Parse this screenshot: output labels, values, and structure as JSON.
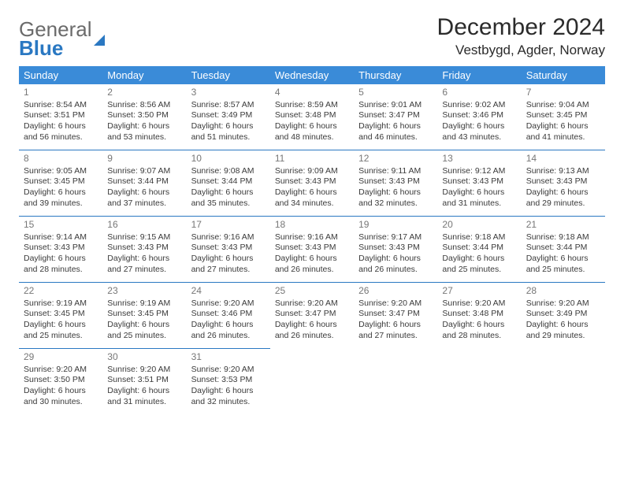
{
  "logo": {
    "line1": "General",
    "line2": "Blue"
  },
  "title": "December 2024",
  "subtitle": "Vestbygd, Agder, Norway",
  "header_bg": "#3a8bd8",
  "border_color": "#2a78c2",
  "weekdays": [
    "Sunday",
    "Monday",
    "Tuesday",
    "Wednesday",
    "Thursday",
    "Friday",
    "Saturday"
  ],
  "weeks": [
    [
      {
        "d": "1",
        "sr": "Sunrise: 8:54 AM",
        "ss": "Sunset: 3:51 PM",
        "dl1": "Daylight: 6 hours",
        "dl2": "and 56 minutes."
      },
      {
        "d": "2",
        "sr": "Sunrise: 8:56 AM",
        "ss": "Sunset: 3:50 PM",
        "dl1": "Daylight: 6 hours",
        "dl2": "and 53 minutes."
      },
      {
        "d": "3",
        "sr": "Sunrise: 8:57 AM",
        "ss": "Sunset: 3:49 PM",
        "dl1": "Daylight: 6 hours",
        "dl2": "and 51 minutes."
      },
      {
        "d": "4",
        "sr": "Sunrise: 8:59 AM",
        "ss": "Sunset: 3:48 PM",
        "dl1": "Daylight: 6 hours",
        "dl2": "and 48 minutes."
      },
      {
        "d": "5",
        "sr": "Sunrise: 9:01 AM",
        "ss": "Sunset: 3:47 PM",
        "dl1": "Daylight: 6 hours",
        "dl2": "and 46 minutes."
      },
      {
        "d": "6",
        "sr": "Sunrise: 9:02 AM",
        "ss": "Sunset: 3:46 PM",
        "dl1": "Daylight: 6 hours",
        "dl2": "and 43 minutes."
      },
      {
        "d": "7",
        "sr": "Sunrise: 9:04 AM",
        "ss": "Sunset: 3:45 PM",
        "dl1": "Daylight: 6 hours",
        "dl2": "and 41 minutes."
      }
    ],
    [
      {
        "d": "8",
        "sr": "Sunrise: 9:05 AM",
        "ss": "Sunset: 3:45 PM",
        "dl1": "Daylight: 6 hours",
        "dl2": "and 39 minutes."
      },
      {
        "d": "9",
        "sr": "Sunrise: 9:07 AM",
        "ss": "Sunset: 3:44 PM",
        "dl1": "Daylight: 6 hours",
        "dl2": "and 37 minutes."
      },
      {
        "d": "10",
        "sr": "Sunrise: 9:08 AM",
        "ss": "Sunset: 3:44 PM",
        "dl1": "Daylight: 6 hours",
        "dl2": "and 35 minutes."
      },
      {
        "d": "11",
        "sr": "Sunrise: 9:09 AM",
        "ss": "Sunset: 3:43 PM",
        "dl1": "Daylight: 6 hours",
        "dl2": "and 34 minutes."
      },
      {
        "d": "12",
        "sr": "Sunrise: 9:11 AM",
        "ss": "Sunset: 3:43 PM",
        "dl1": "Daylight: 6 hours",
        "dl2": "and 32 minutes."
      },
      {
        "d": "13",
        "sr": "Sunrise: 9:12 AM",
        "ss": "Sunset: 3:43 PM",
        "dl1": "Daylight: 6 hours",
        "dl2": "and 31 minutes."
      },
      {
        "d": "14",
        "sr": "Sunrise: 9:13 AM",
        "ss": "Sunset: 3:43 PM",
        "dl1": "Daylight: 6 hours",
        "dl2": "and 29 minutes."
      }
    ],
    [
      {
        "d": "15",
        "sr": "Sunrise: 9:14 AM",
        "ss": "Sunset: 3:43 PM",
        "dl1": "Daylight: 6 hours",
        "dl2": "and 28 minutes."
      },
      {
        "d": "16",
        "sr": "Sunrise: 9:15 AM",
        "ss": "Sunset: 3:43 PM",
        "dl1": "Daylight: 6 hours",
        "dl2": "and 27 minutes."
      },
      {
        "d": "17",
        "sr": "Sunrise: 9:16 AM",
        "ss": "Sunset: 3:43 PM",
        "dl1": "Daylight: 6 hours",
        "dl2": "and 27 minutes."
      },
      {
        "d": "18",
        "sr": "Sunrise: 9:16 AM",
        "ss": "Sunset: 3:43 PM",
        "dl1": "Daylight: 6 hours",
        "dl2": "and 26 minutes."
      },
      {
        "d": "19",
        "sr": "Sunrise: 9:17 AM",
        "ss": "Sunset: 3:43 PM",
        "dl1": "Daylight: 6 hours",
        "dl2": "and 26 minutes."
      },
      {
        "d": "20",
        "sr": "Sunrise: 9:18 AM",
        "ss": "Sunset: 3:44 PM",
        "dl1": "Daylight: 6 hours",
        "dl2": "and 25 minutes."
      },
      {
        "d": "21",
        "sr": "Sunrise: 9:18 AM",
        "ss": "Sunset: 3:44 PM",
        "dl1": "Daylight: 6 hours",
        "dl2": "and 25 minutes."
      }
    ],
    [
      {
        "d": "22",
        "sr": "Sunrise: 9:19 AM",
        "ss": "Sunset: 3:45 PM",
        "dl1": "Daylight: 6 hours",
        "dl2": "and 25 minutes."
      },
      {
        "d": "23",
        "sr": "Sunrise: 9:19 AM",
        "ss": "Sunset: 3:45 PM",
        "dl1": "Daylight: 6 hours",
        "dl2": "and 25 minutes."
      },
      {
        "d": "24",
        "sr": "Sunrise: 9:20 AM",
        "ss": "Sunset: 3:46 PM",
        "dl1": "Daylight: 6 hours",
        "dl2": "and 26 minutes."
      },
      {
        "d": "25",
        "sr": "Sunrise: 9:20 AM",
        "ss": "Sunset: 3:47 PM",
        "dl1": "Daylight: 6 hours",
        "dl2": "and 26 minutes."
      },
      {
        "d": "26",
        "sr": "Sunrise: 9:20 AM",
        "ss": "Sunset: 3:47 PM",
        "dl1": "Daylight: 6 hours",
        "dl2": "and 27 minutes."
      },
      {
        "d": "27",
        "sr": "Sunrise: 9:20 AM",
        "ss": "Sunset: 3:48 PM",
        "dl1": "Daylight: 6 hours",
        "dl2": "and 28 minutes."
      },
      {
        "d": "28",
        "sr": "Sunrise: 9:20 AM",
        "ss": "Sunset: 3:49 PM",
        "dl1": "Daylight: 6 hours",
        "dl2": "and 29 minutes."
      }
    ],
    [
      {
        "d": "29",
        "sr": "Sunrise: 9:20 AM",
        "ss": "Sunset: 3:50 PM",
        "dl1": "Daylight: 6 hours",
        "dl2": "and 30 minutes."
      },
      {
        "d": "30",
        "sr": "Sunrise: 9:20 AM",
        "ss": "Sunset: 3:51 PM",
        "dl1": "Daylight: 6 hours",
        "dl2": "and 31 minutes."
      },
      {
        "d": "31",
        "sr": "Sunrise: 9:20 AM",
        "ss": "Sunset: 3:53 PM",
        "dl1": "Daylight: 6 hours",
        "dl2": "and 32 minutes."
      },
      null,
      null,
      null,
      null
    ]
  ]
}
